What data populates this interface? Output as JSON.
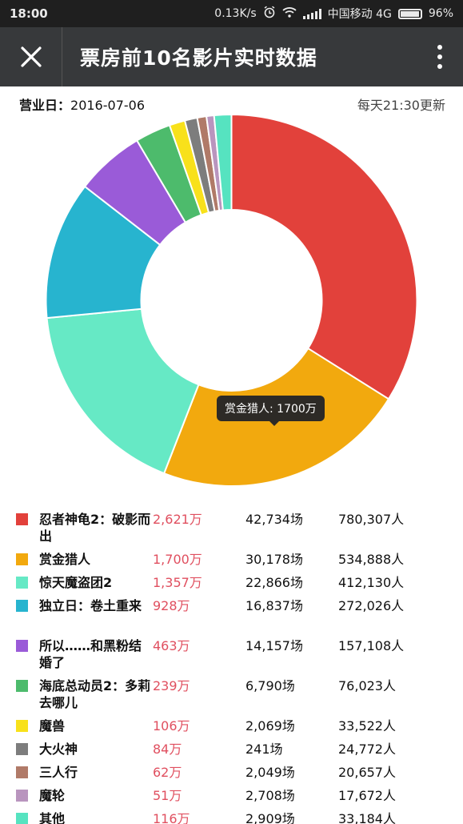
{
  "status_bar": {
    "time": "18:00",
    "speed": "0.13K/s",
    "carrier": "中国移动 4G",
    "battery": "96%",
    "battery_level": 0.96,
    "icons": [
      "alarm-icon",
      "wifi-icon",
      "signal-icon",
      "battery-icon"
    ]
  },
  "app_bar": {
    "title": "票房前10名影片实时数据",
    "close_icon": "close-icon",
    "menu_icon": "more-vert-icon"
  },
  "info": {
    "date_label": "营业日：",
    "date": "2016-07-06",
    "update_note": "每天21:30更新"
  },
  "tooltip": "赏金猎人: 1700万",
  "chart_data": {
    "type": "pie",
    "donut": true,
    "categories": [
      "忍者神龟2：破影而出",
      "赏金猎人",
      "惊天魔盗团2",
      "独立日：卷土重来",
      "所以……和黑粉结婚了",
      "海底总动员2：多莉去哪儿",
      "魔兽",
      "大火神",
      "三人行",
      "魔轮",
      "其他"
    ],
    "values": [
      2621,
      1700,
      1357,
      928,
      463,
      239,
      106,
      84,
      62,
      51,
      116
    ],
    "unit": "万",
    "colors": [
      "#e2413b",
      "#f2a90e",
      "#66e9c5",
      "#27b4cf",
      "#9a5bd8",
      "#4dbb6c",
      "#f8e11b",
      "#7d7d7d",
      "#b07a68",
      "#b995be",
      "#56e3c0"
    ]
  },
  "movies": [
    {
      "name": "忍者神龟2：破影而出",
      "box": "2,621万",
      "shows": "42,734场",
      "viewers": "780,307人",
      "color": "#e2413b",
      "tall": true
    },
    {
      "name": "赏金猎人",
      "box": "1,700万",
      "shows": "30,178场",
      "viewers": "534,888人",
      "color": "#f2a90e",
      "tall": false
    },
    {
      "name": "惊天魔盗团2",
      "box": "1,357万",
      "shows": "22,866场",
      "viewers": "412,130人",
      "color": "#66e9c5",
      "tall": false
    },
    {
      "name": "独立日：卷土重来",
      "box": "928万",
      "shows": "16,837场",
      "viewers": "272,026人",
      "color": "#27b4cf",
      "tall": true
    },
    {
      "name": "所以……和黑粉结婚了",
      "box": "463万",
      "shows": "14,157场",
      "viewers": "157,108人",
      "color": "#9a5bd8",
      "tall": true
    },
    {
      "name": "海底总动员2：多莉去哪儿",
      "box": "239万",
      "shows": "6,790场",
      "viewers": "76,023人",
      "color": "#4dbb6c",
      "tall": true
    },
    {
      "name": "魔兽",
      "box": "106万",
      "shows": "2,069场",
      "viewers": "33,522人",
      "color": "#f8e11b",
      "tall": false
    },
    {
      "name": "大火神",
      "box": "84万",
      "shows": "241场",
      "viewers": "24,772人",
      "color": "#7d7d7d",
      "tall": false
    },
    {
      "name": "三人行",
      "box": "62万",
      "shows": "2,049场",
      "viewers": "20,657人",
      "color": "#b07a68",
      "tall": false
    },
    {
      "name": "魔轮",
      "box": "51万",
      "shows": "2,708场",
      "viewers": "17,672人",
      "color": "#b995be",
      "tall": false
    },
    {
      "name": "其他",
      "box": "116万",
      "shows": "2,909场",
      "viewers": "33,184人",
      "color": "#56e3c0",
      "tall": false
    }
  ]
}
